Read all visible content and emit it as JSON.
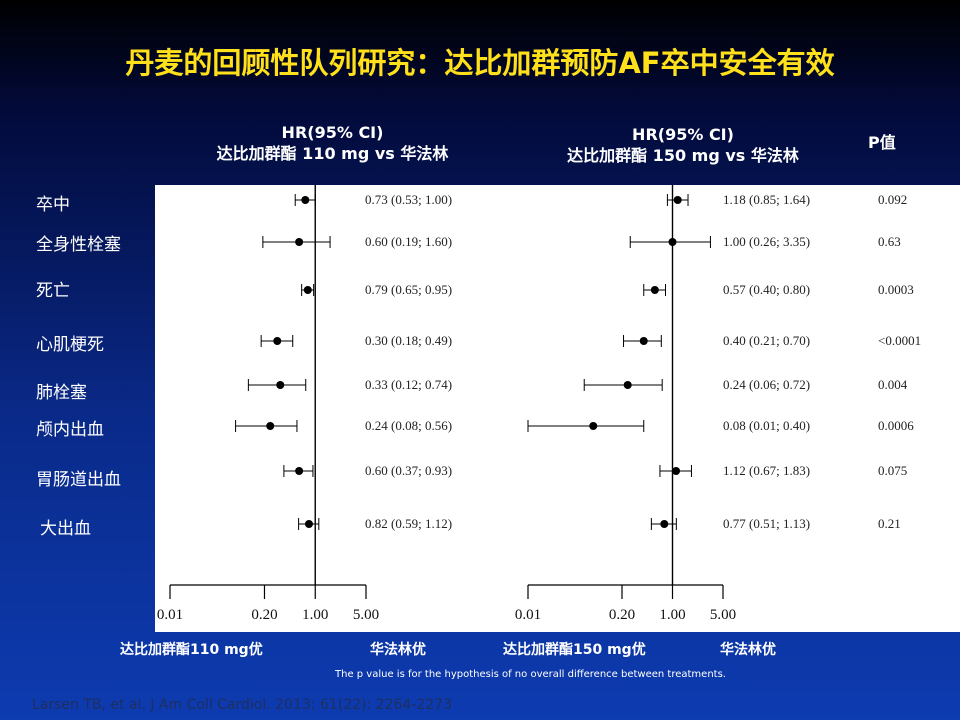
{
  "title": "丹麦的回顾性队列研究：达比加群预防AF卒中安全有效",
  "headers": {
    "left_line1": "HR(95% CI)",
    "left_line2": "达比加群酯 110 mg vs 华法林",
    "right_line1": "HR(95% CI)",
    "right_line2": "达比加群酯 150 mg vs 华法林",
    "p": "P值"
  },
  "favor_labels": {
    "left_dabi": "达比加群酯110 mg优",
    "left_warfarin": "华法林优",
    "right_dabi": "达比加群酯150 mg优",
    "right_warfarin": "华法林优"
  },
  "footnote": "The p value is for the hypothesis of no overall difference between treatments.",
  "citation": "Larsen TB, et al. J Am Coll Cardiol. 2013; 61(22): 2264-2273",
  "chart_data": [
    {
      "type": "forest",
      "title": "达比加群酯 110 mg vs 华法林",
      "x_scale": "log",
      "xlim": [
        0.01,
        5.0
      ],
      "x_ticks": [
        "0.01",
        "0.20",
        "1.00",
        "5.00"
      ],
      "reference_line": 1.0,
      "rows": [
        {
          "label": "卒中",
          "hr": 0.73,
          "lo": 0.53,
          "hi": 1.0,
          "text": "0.73 (0.53; 1.00)"
        },
        {
          "label": "全身性栓塞",
          "hr": 0.6,
          "lo": 0.19,
          "hi": 1.6,
          "text": "0.60 (0.19; 1.60)"
        },
        {
          "label": "死亡",
          "hr": 0.79,
          "lo": 0.65,
          "hi": 0.95,
          "text": "0.79 (0.65; 0.95)"
        },
        {
          "label": "心肌梗死",
          "hr": 0.3,
          "lo": 0.18,
          "hi": 0.49,
          "text": "0.30 (0.18; 0.49)"
        },
        {
          "label": "肺栓塞",
          "hr": 0.33,
          "lo": 0.12,
          "hi": 0.74,
          "text": "0.33 (0.12; 0.74)"
        },
        {
          "label": "颅内出血",
          "hr": 0.24,
          "lo": 0.08,
          "hi": 0.56,
          "text": "0.24 (0.08; 0.56)"
        },
        {
          "label": "胃肠道出血",
          "hr": 0.6,
          "lo": 0.37,
          "hi": 0.93,
          "text": "0.60 (0.37; 0.93)"
        },
        {
          "label": "大出血",
          "hr": 0.82,
          "lo": 0.59,
          "hi": 1.12,
          "text": "0.82 (0.59; 1.12)"
        }
      ]
    },
    {
      "type": "forest",
      "title": "达比加群酯 150 mg vs 华法林",
      "x_scale": "log",
      "xlim": [
        0.01,
        5.0
      ],
      "x_ticks": [
        "0.01",
        "0.20",
        "1.00",
        "5.00"
      ],
      "reference_line": 1.0,
      "rows": [
        {
          "label": "卒中",
          "hr": 1.18,
          "lo": 0.85,
          "hi": 1.64,
          "text": "1.18 (0.85; 1.64)",
          "p": "0.092"
        },
        {
          "label": "全身性栓塞",
          "hr": 1.0,
          "lo": 0.26,
          "hi": 3.35,
          "text": "1.00 (0.26; 3.35)",
          "p": "0.63"
        },
        {
          "label": "死亡",
          "hr": 0.57,
          "lo": 0.4,
          "hi": 0.8,
          "text": "0.57 (0.40; 0.80)",
          "p": "0.0003"
        },
        {
          "label": "心肌梗死",
          "hr": 0.4,
          "lo": 0.21,
          "hi": 0.7,
          "text": "0.40 (0.21; 0.70)",
          "p": "<0.0001"
        },
        {
          "label": "肺栓塞",
          "hr": 0.24,
          "lo": 0.06,
          "hi": 0.72,
          "text": "0.24 (0.06; 0.72)",
          "p": "0.004"
        },
        {
          "label": "颅内出血",
          "hr": 0.08,
          "lo": 0.01,
          "hi": 0.4,
          "text": "0.08 (0.01; 0.40)",
          "p": "0.0006"
        },
        {
          "label": "胃肠道出血",
          "hr": 1.12,
          "lo": 0.67,
          "hi": 1.83,
          "text": "1.12 (0.67; 1.83)",
          "p": "0.075"
        },
        {
          "label": "大出血",
          "hr": 0.77,
          "lo": 0.51,
          "hi": 1.13,
          "text": "0.77 (0.51; 1.13)",
          "p": "0.21"
        }
      ]
    }
  ]
}
